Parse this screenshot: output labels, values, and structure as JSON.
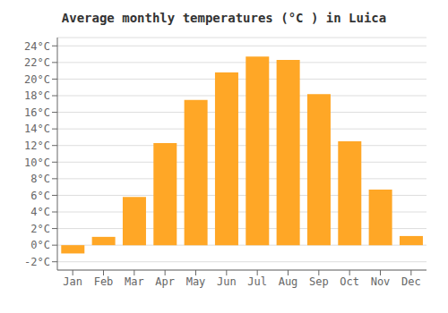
{
  "chart_data": {
    "type": "bar",
    "title": "Average monthly temperatures (°C ) in Luica",
    "categories": [
      "Jan",
      "Feb",
      "Mar",
      "Apr",
      "May",
      "Jun",
      "Jul",
      "Aug",
      "Sep",
      "Oct",
      "Nov",
      "Dec"
    ],
    "values": [
      -1.0,
      1.0,
      5.8,
      12.3,
      17.5,
      20.8,
      22.7,
      22.3,
      18.2,
      12.5,
      6.7,
      1.1
    ],
    "color": "#FFA726",
    "ylim": [
      -3,
      25
    ],
    "yticks": [
      {
        "value": -2,
        "label": "-2°C"
      },
      {
        "value": 0,
        "label": "0°C"
      },
      {
        "value": 2,
        "label": "2°C"
      },
      {
        "value": 4,
        "label": "4°C"
      },
      {
        "value": 6,
        "label": "6°C"
      },
      {
        "value": 8,
        "label": "8°C"
      },
      {
        "value": 10,
        "label": "10°C"
      },
      {
        "value": 12,
        "label": "12°C"
      },
      {
        "value": 14,
        "label": "14°C"
      },
      {
        "value": 16,
        "label": "16°C"
      },
      {
        "value": 18,
        "label": "18°C"
      },
      {
        "value": 20,
        "label": "20°C"
      },
      {
        "value": 22,
        "label": "22°C"
      },
      {
        "value": 24,
        "label": "24°C"
      }
    ],
    "grid": true
  }
}
